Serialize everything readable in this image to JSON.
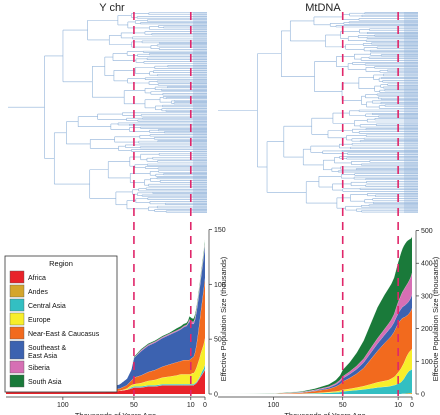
{
  "titles": {
    "left": "Y chr",
    "right": "MtDNA"
  },
  "colors": {
    "tree": "#8fb2d9",
    "dashed": "#e0266a",
    "regions": [
      "#e8232a",
      "#d4a52c",
      "#33bfc2",
      "#f7ee2a",
      "#f26a1e",
      "#3c62b0",
      "#d66fb4",
      "#1a7a3a"
    ]
  },
  "chart_data": [
    {
      "type": "area",
      "panel": "Y chr",
      "stacked": true,
      "x": [
        140,
        100,
        80,
        70,
        60,
        55,
        52,
        50,
        45,
        40,
        35,
        30,
        25,
        20,
        17,
        15,
        13,
        12,
        11,
        10,
        9,
        8,
        7,
        6,
        5,
        4,
        3,
        2,
        1,
        0
      ],
      "series": [
        {
          "name": "Africa",
          "values": [
            2,
            2,
            2,
            2,
            3,
            4,
            5,
            6,
            6,
            7,
            7,
            8,
            8,
            8,
            8,
            8,
            8,
            8,
            8,
            8,
            8,
            8,
            9,
            10,
            12,
            14,
            16,
            18,
            20,
            22
          ]
        },
        {
          "name": "Andes",
          "values": [
            0,
            0,
            0,
            0,
            0,
            0,
            0,
            0,
            0,
            0,
            0,
            0,
            0,
            0,
            0,
            0,
            0,
            0,
            0,
            0,
            0,
            0,
            0,
            0,
            0,
            0,
            0,
            0,
            0,
            1
          ]
        },
        {
          "name": "Central Asia",
          "values": [
            0,
            0,
            0,
            0,
            0,
            0,
            1,
            1,
            1,
            1,
            1,
            1,
            1,
            1,
            1,
            1,
            1,
            1,
            1,
            1,
            1,
            1,
            1,
            1,
            1,
            1,
            2,
            3,
            3,
            4
          ]
        },
        {
          "name": "Europe",
          "values": [
            0,
            0,
            0,
            0,
            0,
            1,
            2,
            2,
            3,
            4,
            5,
            6,
            7,
            8,
            9,
            9,
            9,
            9,
            9,
            9,
            10,
            10,
            11,
            13,
            15,
            17,
            19,
            20,
            22,
            24
          ]
        },
        {
          "name": "Near-East & Caucasus",
          "values": [
            0,
            0,
            1,
            1,
            2,
            3,
            4,
            6,
            7,
            8,
            9,
            10,
            11,
            12,
            12,
            13,
            13,
            13,
            13,
            14,
            14,
            15,
            17,
            21,
            26,
            32,
            38,
            44,
            50,
            55
          ]
        },
        {
          "name": "Southeast & East Asia",
          "values": [
            0,
            0,
            1,
            2,
            4,
            6,
            10,
            18,
            22,
            24,
            25,
            26,
            27,
            28,
            29,
            30,
            31,
            33,
            35,
            33,
            31,
            30,
            30,
            30,
            30,
            30,
            30,
            30,
            30,
            30
          ]
        },
        {
          "name": "Siberia",
          "values": [
            0,
            0,
            0,
            0,
            0,
            0,
            0,
            0,
            1,
            1,
            1,
            1,
            1,
            1,
            1,
            1,
            1,
            1,
            2,
            2,
            2,
            2,
            2,
            2,
            2,
            2,
            2,
            2,
            2,
            2
          ]
        },
        {
          "name": "South Asia",
          "values": [
            0,
            0,
            0,
            0,
            0,
            0,
            0,
            1,
            1,
            1,
            1,
            1,
            1,
            2,
            2,
            2,
            2,
            2,
            3,
            3,
            3,
            3,
            3,
            3,
            3,
            3,
            3,
            3,
            3,
            3
          ]
        }
      ],
      "xticks": [
        100,
        50,
        10,
        0
      ],
      "yticks": [
        0,
        50,
        100,
        150
      ],
      "xlim": [
        140,
        0
      ],
      "ylim": [
        0,
        155
      ],
      "xlabel": "Thousands of Years Ago",
      "ylabel": "Effective Population Size (thousands)",
      "vlines": [
        50,
        10
      ]
    },
    {
      "type": "area",
      "panel": "MtDNA",
      "stacked": true,
      "x": [
        140,
        100,
        80,
        70,
        60,
        55,
        52,
        50,
        45,
        40,
        35,
        30,
        25,
        20,
        17,
        15,
        13,
        12,
        11,
        10,
        9,
        8,
        7,
        6,
        5,
        4,
        3,
        2,
        1,
        0
      ],
      "series": [
        {
          "name": "Africa",
          "values": [
            0,
            0,
            0,
            0,
            0,
            0,
            0,
            0,
            0,
            0,
            0,
            0,
            0,
            0,
            0,
            0,
            0,
            0,
            0,
            0,
            0,
            0,
            0,
            0,
            0,
            0,
            0,
            0,
            0,
            0
          ]
        },
        {
          "name": "Andes",
          "values": [
            0,
            0,
            0,
            0,
            0,
            0,
            0,
            0,
            0,
            0,
            0,
            0,
            0,
            0,
            0,
            0,
            0,
            0,
            0,
            0,
            0,
            0,
            1,
            1,
            1,
            2,
            2,
            3,
            3,
            4
          ]
        },
        {
          "name": "Central Asia",
          "values": [
            0,
            0,
            1,
            2,
            4,
            5,
            6,
            8,
            10,
            12,
            14,
            17,
            20,
            22,
            23,
            25,
            27,
            28,
            30,
            32,
            34,
            36,
            40,
            45,
            52,
            58,
            64,
            68,
            70,
            72
          ]
        },
        {
          "name": "Europe",
          "values": [
            0,
            0,
            0,
            1,
            2,
            3,
            4,
            5,
            6,
            8,
            10,
            13,
            16,
            18,
            20,
            22,
            25,
            28,
            31,
            34,
            38,
            42,
            45,
            48,
            51,
            54,
            56,
            58,
            60,
            62
          ]
        },
        {
          "name": "Near-East & Caucasus",
          "values": [
            0,
            1,
            3,
            6,
            10,
            15,
            20,
            25,
            33,
            42,
            55,
            75,
            95,
            115,
            125,
            130,
            138,
            143,
            147,
            150,
            150,
            149,
            146,
            140,
            132,
            125,
            120,
            118,
            120,
            125
          ]
        },
        {
          "name": "Southeast & East Asia",
          "values": [
            0,
            0,
            1,
            2,
            4,
            6,
            8,
            10,
            12,
            14,
            17,
            20,
            23,
            25,
            27,
            28,
            29,
            30,
            30,
            31,
            32,
            33,
            34,
            35,
            36,
            37,
            38,
            39,
            40,
            42
          ]
        },
        {
          "name": "Siberia",
          "values": [
            0,
            0,
            1,
            2,
            3,
            4,
            5,
            6,
            8,
            10,
            12,
            14,
            16,
            18,
            20,
            22,
            25,
            28,
            32,
            35,
            38,
            42,
            46,
            50,
            54,
            57,
            60,
            62,
            64,
            66
          ]
        },
        {
          "name": "South Asia",
          "values": [
            0,
            1,
            2,
            4,
            7,
            10,
            14,
            20,
            28,
            40,
            55,
            75,
            95,
            105,
            108,
            110,
            112,
            115,
            118,
            122,
            126,
            130,
            132,
            134,
            134,
            133,
            130,
            125,
            118,
            110
          ]
        }
      ],
      "xticks": [
        100,
        50,
        10,
        0
      ],
      "yticks": [
        0,
        100,
        200,
        300,
        400,
        500
      ],
      "xlim": [
        140,
        0
      ],
      "ylim": [
        0,
        520
      ],
      "xlabel": "Thousands of Years Ago",
      "ylabel": "Effective Population Size (thousands)",
      "vlines": [
        50,
        10
      ]
    }
  ],
  "legend": {
    "title": "Region",
    "items": [
      "Africa",
      "Andes",
      "Central Asia",
      "Europe",
      "Near-East & Caucasus",
      "Southeast & East Asia",
      "Siberia",
      "South Asia"
    ]
  }
}
